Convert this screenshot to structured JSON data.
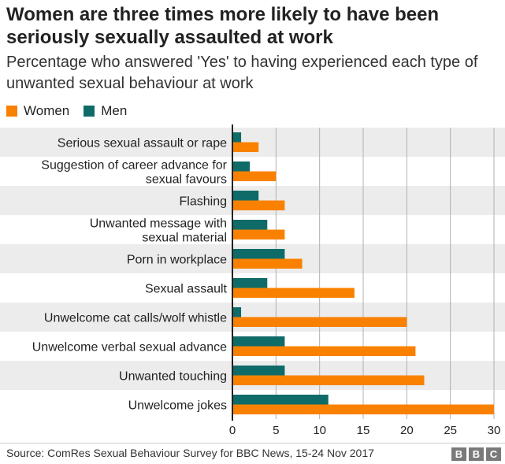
{
  "header": {
    "title": "Women are three times more likely to have been seriously sexually assaulted at work",
    "subtitle": "Percentage who answered 'Yes' to having experienced each type of unwanted sexual behaviour at work"
  },
  "footer": {
    "source": "Source: ComRes Sexual Behaviour Survey for BBC News, 15-24 Nov 2017",
    "logo_letters": [
      "B",
      "B",
      "C"
    ]
  },
  "colors": {
    "women": "#fa8100",
    "men": "#0f6b68",
    "band": "#ececec",
    "grid": "#b0b0b0",
    "axis": "#222222"
  },
  "chart_data": {
    "type": "bar",
    "orientation": "horizontal",
    "title": "Women are three times more likely to have been seriously sexually assaulted at work",
    "subtitle": "Percentage who answered 'Yes' to having experienced each type of unwanted sexual behaviour at work",
    "categories": [
      [
        "Serious sexual assault or rape"
      ],
      [
        "Suggestion of career advance for",
        "sexual favours"
      ],
      [
        "Flashing"
      ],
      [
        "Unwanted message with",
        "sexual material"
      ],
      [
        "Porn in workplace"
      ],
      [
        "Sexual assault"
      ],
      [
        "Unwelcome cat calls/wolf whistle"
      ],
      [
        "Unwelcome verbal sexual advance"
      ],
      [
        "Unwanted touching"
      ],
      [
        "Unwelcome jokes"
      ]
    ],
    "series": [
      {
        "name": "Men",
        "values": [
          1,
          2,
          3,
          4,
          6,
          4,
          1,
          6,
          6,
          11
        ]
      },
      {
        "name": "Women",
        "values": [
          3,
          5,
          6,
          6,
          8,
          14,
          20,
          21,
          22,
          30
        ]
      }
    ],
    "legend_order": [
      "Women",
      "Men"
    ],
    "xlim": [
      0,
      30
    ],
    "xticks": [
      0,
      5,
      10,
      15,
      20,
      25,
      30
    ],
    "grid": true,
    "legend_position": "top-left",
    "xlabel": "",
    "ylabel": ""
  }
}
